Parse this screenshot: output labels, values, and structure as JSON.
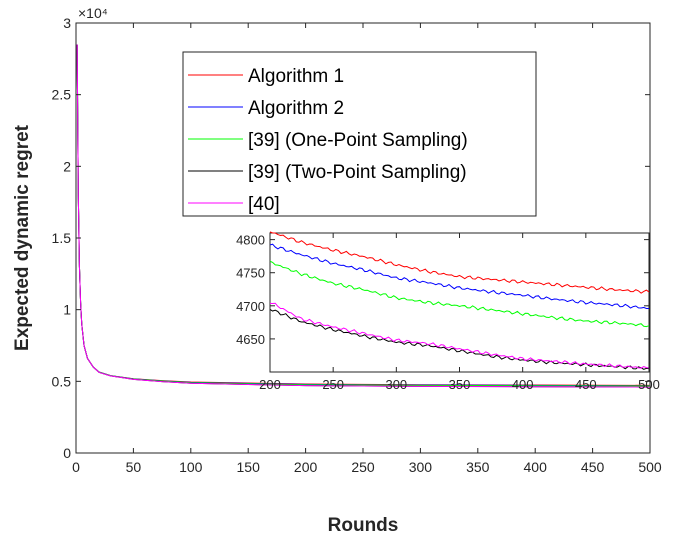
{
  "chart_data": [
    {
      "type": "line",
      "xlabel": "Rounds",
      "ylabel": "Expected dynamic regret",
      "multiplier": "×10⁴",
      "xlim": [
        0,
        500
      ],
      "ylim": [
        0,
        3
      ],
      "xticks": [
        0,
        50,
        100,
        150,
        200,
        250,
        300,
        350,
        400,
        450,
        500
      ],
      "yticks": [
        0,
        0.5,
        1,
        1.5,
        2,
        2.5,
        3
      ],
      "xtick_labels": [
        "0",
        "50",
        "100",
        "150",
        "200",
        "250",
        "300",
        "350",
        "400",
        "450",
        "500"
      ],
      "ytick_labels": [
        "0",
        "0.5",
        "1",
        "1.5",
        "2",
        "2.5",
        "3"
      ],
      "grid": false,
      "legend_position": "upper-center",
      "x": [
        1,
        2,
        3,
        4,
        5,
        7,
        10,
        15,
        20,
        30,
        50,
        75,
        100,
        150,
        200,
        300,
        400,
        500
      ],
      "series": [
        {
          "name": "Algorithm 1",
          "color": "#ff0000",
          "values": [
            2.85,
            1.8,
            1.3,
            1.05,
            0.9,
            0.75,
            0.66,
            0.6,
            0.565,
            0.54,
            0.518,
            0.505,
            0.495,
            0.488,
            0.481,
            0.476,
            0.474,
            0.472
          ]
        },
        {
          "name": "Algorithm 2",
          "color": "#0000ff",
          "values": [
            2.85,
            1.8,
            1.3,
            1.05,
            0.9,
            0.75,
            0.66,
            0.6,
            0.565,
            0.54,
            0.517,
            0.503,
            0.493,
            0.486,
            0.479,
            0.474,
            0.472,
            0.469
          ]
        },
        {
          "name": "[39] (One-Point Sampling)",
          "color": "#00ff00",
          "values": [
            2.85,
            1.8,
            1.3,
            1.05,
            0.9,
            0.75,
            0.66,
            0.6,
            0.565,
            0.54,
            0.516,
            0.502,
            0.491,
            0.483,
            0.476,
            0.472,
            0.469,
            0.467
          ]
        },
        {
          "name": "[39] (Two-Point Sampling)",
          "color": "#000000",
          "values": [
            2.85,
            1.8,
            1.3,
            1.05,
            0.9,
            0.75,
            0.66,
            0.6,
            0.563,
            0.538,
            0.514,
            0.498,
            0.487,
            0.478,
            0.47,
            0.465,
            0.462,
            0.46
          ]
        },
        {
          "name": "[40]",
          "color": "#ff00ff",
          "values": [
            2.85,
            1.8,
            1.3,
            1.05,
            0.9,
            0.75,
            0.66,
            0.6,
            0.563,
            0.538,
            0.514,
            0.498,
            0.487,
            0.478,
            0.47,
            0.465,
            0.462,
            0.46
          ]
        }
      ]
    },
    {
      "type": "line",
      "xlim": [
        200,
        500
      ],
      "ylim": [
        4600,
        4810
      ],
      "xticks": [
        200,
        250,
        300,
        350,
        400,
        450,
        500
      ],
      "yticks": [
        4650,
        4700,
        4750,
        4800
      ],
      "xtick_labels": [
        "200",
        "250",
        "300",
        "350",
        "400",
        "450",
        "500"
      ],
      "ytick_labels": [
        "4650",
        "4700",
        "4750",
        "4800"
      ],
      "x": [
        200,
        225,
        250,
        275,
        300,
        325,
        350,
        375,
        400,
        425,
        450,
        475,
        500
      ],
      "series": [
        {
          "color": "#ff0000",
          "values": [
            4812,
            4796,
            4784,
            4774,
            4762,
            4752,
            4744,
            4740,
            4736,
            4732,
            4728,
            4724,
            4721
          ]
        },
        {
          "color": "#0000ff",
          "values": [
            4792,
            4777,
            4764,
            4754,
            4742,
            4735,
            4727,
            4721,
            4716,
            4710,
            4705,
            4701,
            4696
          ]
        },
        {
          "color": "#00ff00",
          "values": [
            4766,
            4748,
            4734,
            4724,
            4712,
            4705,
            4700,
            4694,
            4688,
            4682,
            4677,
            4674,
            4670
          ]
        },
        {
          "color": "#000000",
          "values": [
            4695,
            4676,
            4664,
            4654,
            4645,
            4640,
            4632,
            4624,
            4618,
            4614,
            4611,
            4608,
            4605
          ]
        },
        {
          "color": "#ff00ff",
          "values": [
            4706,
            4680,
            4668,
            4658,
            4648,
            4643,
            4635,
            4627,
            4620,
            4616,
            4612,
            4609,
            4606
          ]
        }
      ]
    }
  ]
}
